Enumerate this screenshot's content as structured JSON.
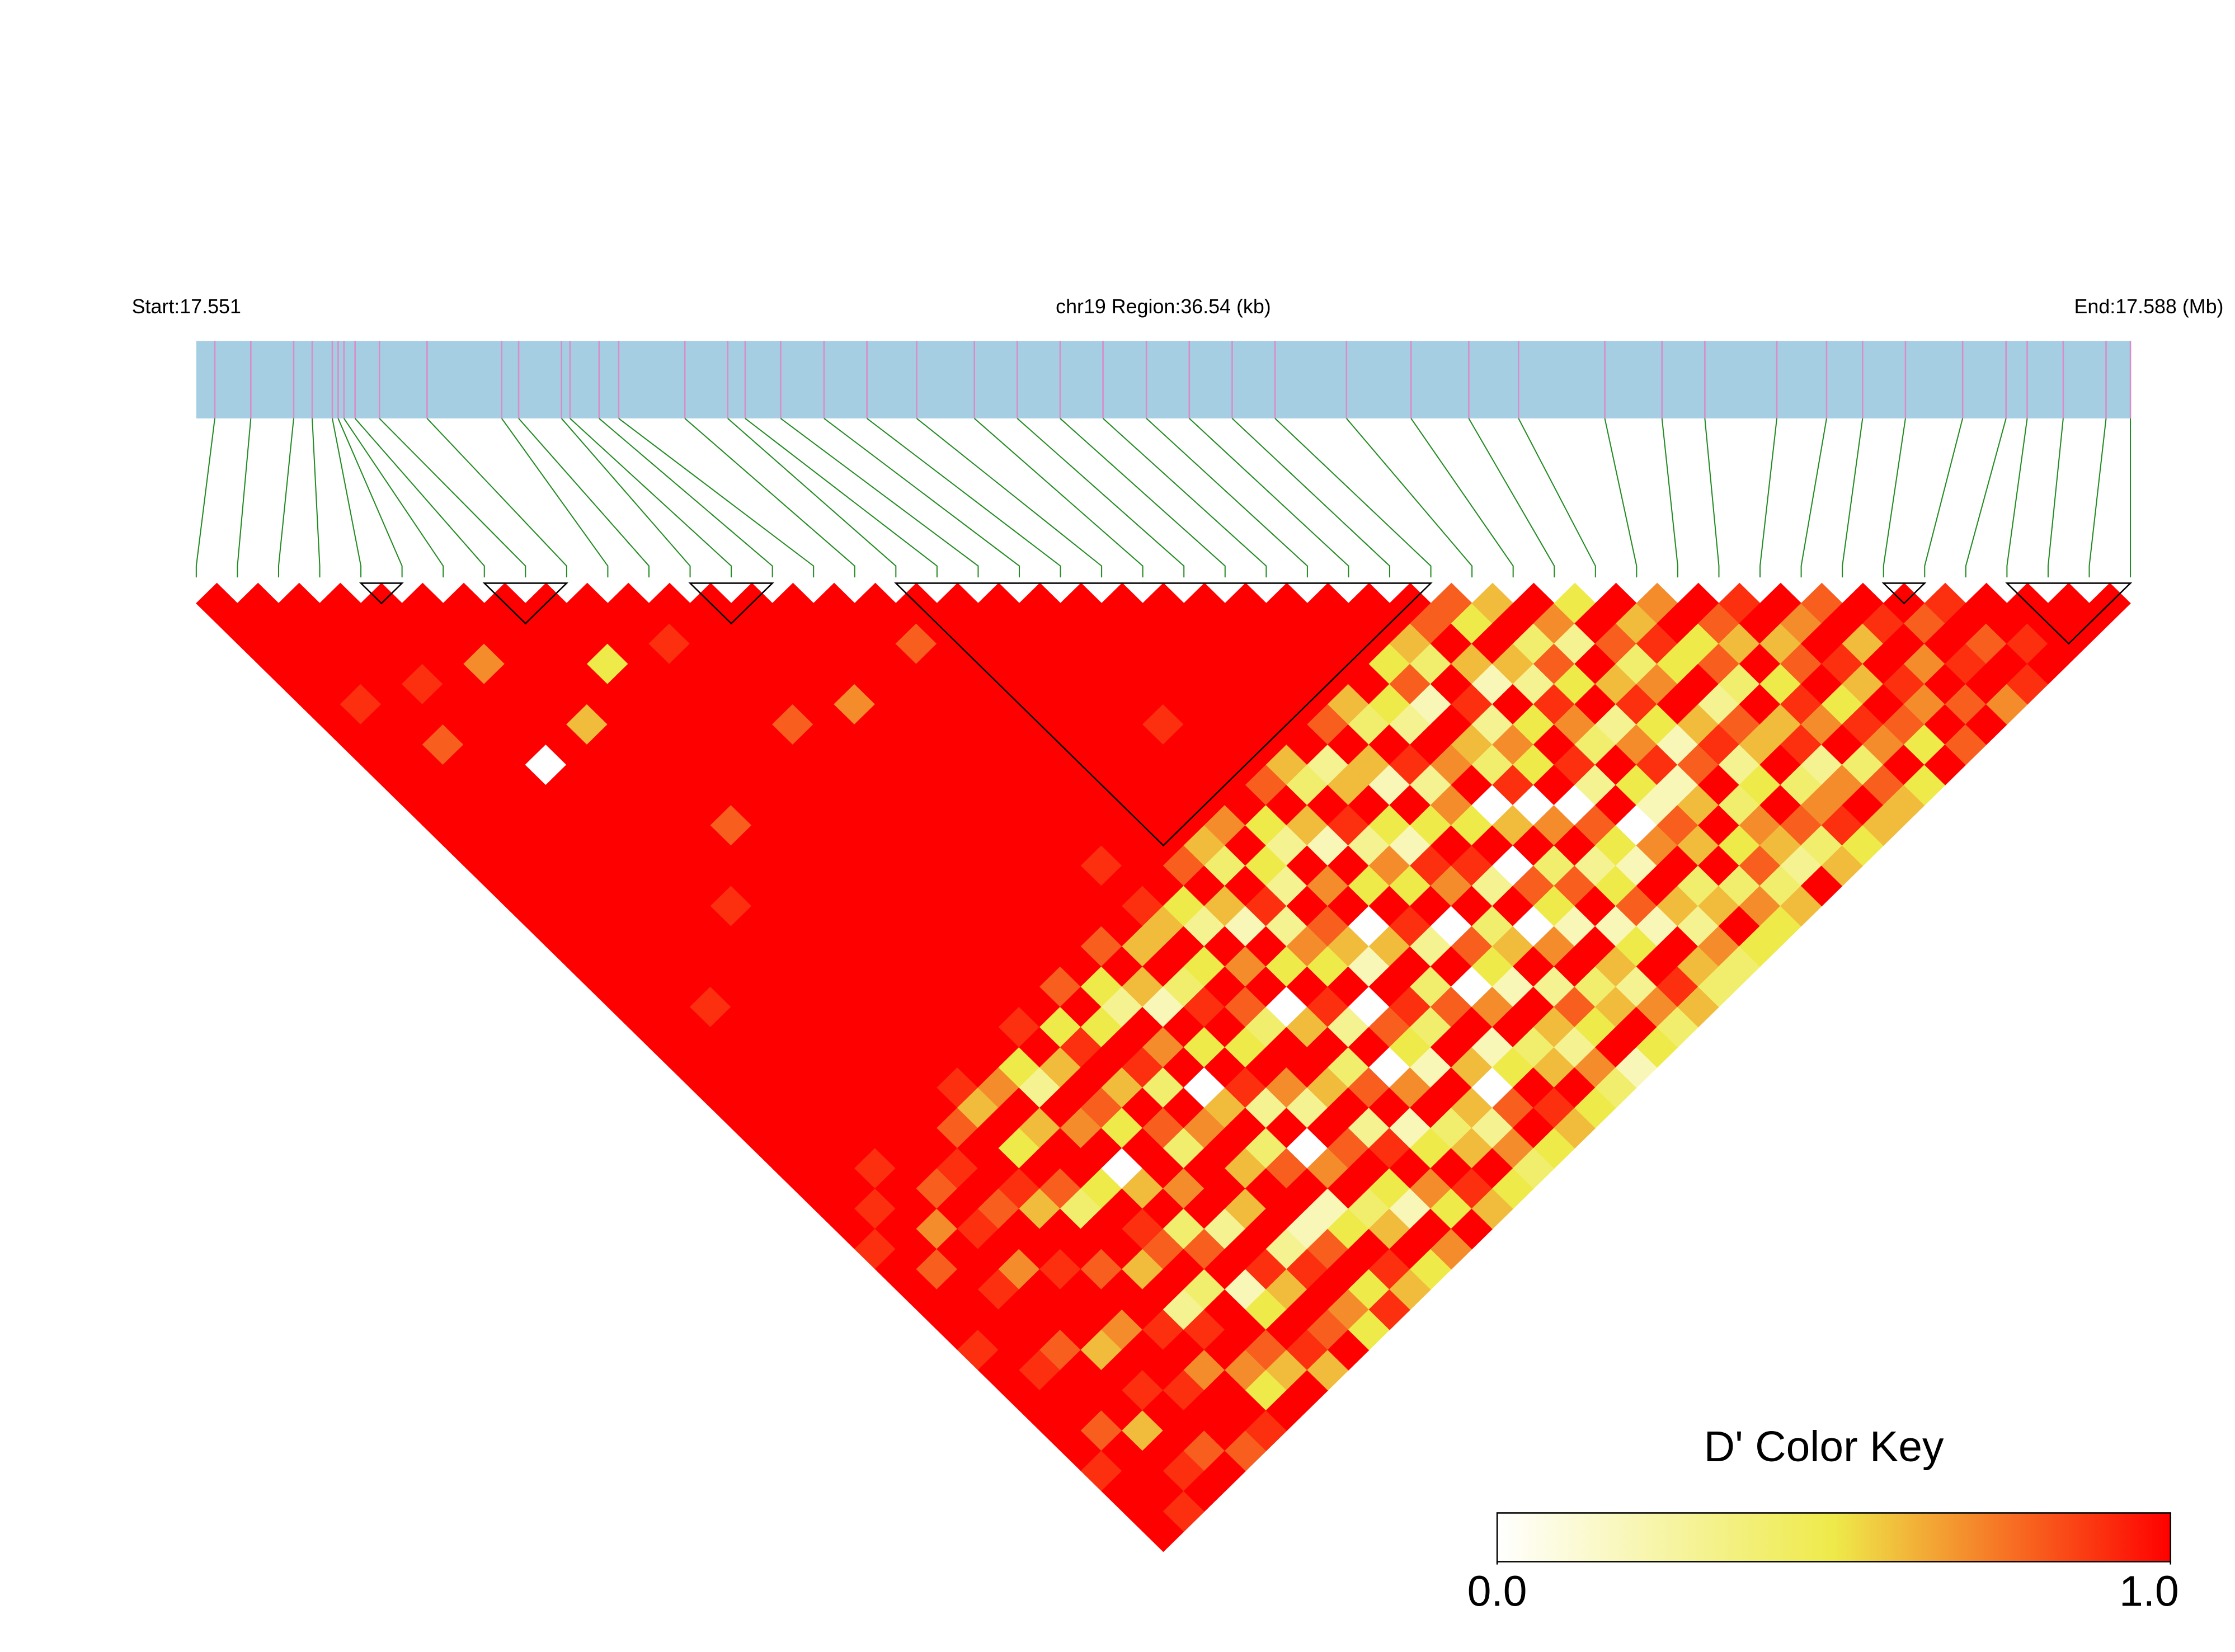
{
  "chart_data": {
    "type": "ld_heatmap",
    "start_label": "Start:17.551",
    "region_label": "chr19 Region:36.54 (kb)",
    "end_label": "End:17.588 (Mb)",
    "legend_title": "D' Color Key",
    "xlim": [
      17.551,
      17.58754
    ],
    "positions": [
      17.55135,
      17.55203,
      17.55284,
      17.55319,
      17.55357,
      17.55368,
      17.55379,
      17.554,
      17.55446,
      17.55536,
      17.55677,
      17.55709,
      17.5579,
      17.55806,
      17.55861,
      17.55898,
      17.56023,
      17.56104,
      17.56137,
      17.56204,
      17.56286,
      17.56367,
      17.56461,
      17.5657,
      17.56651,
      17.56732,
      17.56813,
      17.56895,
      17.56976,
      17.57057,
      17.57138,
      17.57273,
      17.57395,
      17.57504,
      17.57598,
      17.57761,
      17.57869,
      17.5795,
      17.58086,
      17.5818,
      17.58248,
      17.58329,
      17.58437,
      17.58519,
      17.58559,
      17.58627,
      17.58708,
      17.58754
    ],
    "bar_color": "#a6cee3",
    "marker_color": "#d98cc9",
    "link_color": "#228b22",
    "block_color": "#000000",
    "color_stops": [
      {
        "value": 0,
        "color": "#ffffff"
      },
      {
        "value": 0.5,
        "color": "#eeea4a"
      },
      {
        "value": 1,
        "color": "#ff0000"
      }
    ],
    "color_ticks": [
      {
        "value": 0,
        "label": "0.0"
      },
      {
        "value": 1,
        "label": "1.0"
      }
    ],
    "blocks": [
      [
        4,
        5
      ],
      [
        7,
        9
      ],
      [
        12,
        14
      ],
      [
        17,
        30
      ],
      [
        41,
        42
      ],
      [
        44,
        47
      ]
    ],
    "dprime": [
      [
        1,
        1,
        1,
        1,
        1,
        1,
        1,
        1,
        1,
        1,
        1,
        1,
        1,
        1,
        1,
        1,
        1,
        1,
        1,
        1,
        1,
        1,
        1,
        1,
        1,
        1,
        1,
        1,
        1,
        1,
        1,
        1,
        0.9,
        1,
        1,
        1,
        1,
        0.9,
        1,
        1,
        1,
        1,
        1,
        0.9,
        1,
        1,
        1
      ],
      [
        1,
        1,
        1,
        1,
        1,
        0.9,
        1,
        1,
        1,
        1,
        1,
        1,
        1,
        1,
        1,
        1,
        1,
        1,
        1,
        1,
        1,
        1,
        1,
        1,
        1,
        1,
        1,
        1,
        1,
        1,
        0.9,
        1,
        1,
        0.8,
        1,
        1,
        1,
        1,
        0.9,
        1,
        1,
        0.8,
        1,
        1,
        1,
        0.9
      ],
      [
        1,
        1,
        1,
        1,
        1,
        1,
        1,
        0.8,
        1,
        1,
        1,
        1,
        1,
        1,
        1,
        1,
        1,
        1,
        1,
        1,
        0.9,
        1,
        1,
        1,
        1,
        1,
        1,
        1,
        0.9,
        1,
        1,
        0.7,
        1,
        1,
        0.9,
        1,
        1,
        0.8,
        1,
        1,
        1,
        0.6,
        1,
        0.9,
        1
      ],
      [
        1,
        1,
        1,
        1,
        0.9,
        1,
        1,
        1,
        1,
        1,
        1,
        1,
        1,
        1,
        1,
        1,
        1,
        1,
        1,
        1,
        1,
        1,
        1,
        1,
        1,
        1,
        1,
        1,
        1,
        0.8,
        1,
        0.9,
        1,
        0.7,
        1,
        1,
        1,
        0.6,
        1,
        0.9,
        1,
        1,
        0.8,
        1
      ],
      [
        1,
        1,
        1,
        1,
        1,
        1,
        1,
        1,
        0,
        1,
        1,
        1,
        1,
        1,
        1,
        1,
        1,
        1,
        1,
        1,
        1,
        1,
        1,
        1,
        1,
        1,
        1,
        1,
        0.9,
        1,
        0.8,
        1,
        1,
        0.9,
        1,
        1,
        0.7,
        1,
        1,
        0.9,
        1,
        1,
        0.8
      ],
      [
        1,
        1,
        1,
        0.7,
        1,
        1,
        1,
        1,
        1,
        1,
        1,
        1,
        1,
        1,
        1,
        0.9,
        1,
        1,
        1,
        1,
        1,
        1,
        1,
        1,
        1,
        1,
        0.8,
        1,
        1,
        0.9,
        0.6,
        1,
        1,
        0.8,
        1,
        1,
        0.9,
        1,
        0.7,
        1,
        1,
        0.9
      ],
      [
        1,
        1,
        1,
        1,
        1,
        1,
        0.6,
        1,
        1,
        1,
        1,
        1,
        1,
        1,
        1,
        1,
        1,
        1,
        1,
        1,
        1,
        1,
        1,
        1,
        0.9,
        0.6,
        1,
        0.5,
        1,
        0.8,
        0.4,
        1,
        1,
        0.6,
        1,
        0.3,
        0.9,
        1,
        0.7,
        0.5,
        1
      ],
      [
        1,
        1,
        1,
        1,
        1,
        1,
        1,
        1,
        1,
        1,
        1,
        0.8,
        1,
        1,
        1,
        1,
        1,
        1,
        1,
        1,
        1,
        1,
        1,
        1,
        0.7,
        1,
        0.6,
        1,
        1,
        0.5,
        1,
        0.9,
        0.8,
        1,
        0.4,
        1,
        1,
        0.8,
        0.6,
        1
      ],
      [
        1,
        1,
        1,
        0.5,
        1,
        1,
        1,
        1,
        1,
        1,
        1,
        1,
        1,
        1,
        1,
        1,
        1,
        1,
        1,
        1,
        1,
        1,
        1,
        0.5,
        0.3,
        1,
        0.7,
        1,
        0,
        0.6,
        1,
        0.4,
        0.8,
        1,
        0.2,
        0.5,
        1,
        0.9,
        0.6
      ],
      [
        1,
        1,
        1,
        1,
        1,
        1,
        1,
        1,
        1,
        1,
        1,
        1,
        1,
        1,
        1,
        1,
        1,
        1,
        1,
        1,
        1,
        0.9,
        1,
        0.6,
        1,
        0.8,
        0.5,
        1,
        1,
        0.7,
        1,
        0.3,
        1,
        0.9,
        0.6,
        1,
        0.8,
        1
      ],
      [
        1,
        1,
        0.9,
        1,
        1,
        1,
        1,
        1,
        1,
        1,
        1,
        1,
        1,
        1,
        1,
        1,
        1,
        1,
        1,
        1,
        1,
        0.5,
        0.9,
        1,
        0.6,
        1,
        0.8,
        0.4,
        1,
        1,
        0.6,
        1,
        0.3,
        0.9,
        1,
        0.7,
        0.5
      ],
      [
        1,
        1,
        1,
        1,
        1,
        1,
        0.8,
        1,
        1,
        1,
        1,
        1,
        1,
        1,
        1,
        1,
        1,
        1,
        1,
        0.8,
        1,
        0.5,
        1,
        0.9,
        0.4,
        1,
        0.7,
        1,
        0.6,
        1,
        1,
        0.2,
        0.8,
        1,
        0.5,
        0.9
      ],
      [
        1,
        1,
        1,
        1,
        1,
        1,
        1,
        1,
        1,
        1,
        1,
        1,
        1,
        1,
        1,
        1,
        1,
        1,
        1,
        0.5,
        0.3,
        1,
        0.7,
        1,
        0,
        0.6,
        1,
        0.4,
        0.8,
        1,
        0.2,
        0.5,
        1,
        0.9,
        0.6
      ],
      [
        1,
        1,
        1,
        1,
        1,
        0.7,
        1,
        1,
        1,
        1,
        1,
        1,
        1,
        1,
        1,
        1,
        1,
        0.8,
        1,
        0.6,
        0.2,
        1,
        0.5,
        1,
        0.9,
        0.3,
        1,
        0,
        0.7,
        1,
        0.4,
        0.6,
        1,
        0.5
      ],
      [
        1,
        1,
        1,
        1,
        1,
        1,
        1,
        1,
        1,
        1,
        1,
        1,
        1,
        1,
        1,
        1,
        1,
        0.6,
        1,
        0.4,
        0.9,
        1,
        0.5,
        1,
        0.7,
        0.3,
        1,
        0.8,
        1,
        0.5,
        0.2,
        1,
        0.7
      ],
      [
        1,
        1,
        1,
        1,
        1,
        1,
        1,
        1,
        1,
        1,
        1,
        1,
        1,
        0.9,
        1,
        0.9,
        0.6,
        1,
        0.5,
        1,
        0.8,
        0.4,
        1,
        1,
        0.6,
        1,
        0.3,
        0.9,
        1,
        0.7,
        0.5,
        1
      ],
      [
        1,
        1,
        0.8,
        1,
        1,
        1,
        1,
        1,
        1,
        1,
        1,
        1,
        1,
        1,
        1,
        0.5,
        0.3,
        1,
        0.7,
        1,
        0,
        0.6,
        1,
        0.4,
        0.8,
        1,
        0.2,
        0.5,
        1,
        0.9,
        0.6
      ],
      [
        1,
        1,
        1,
        1,
        1,
        1,
        1,
        1,
        1,
        1,
        1,
        1,
        1,
        0.8,
        1,
        0.6,
        0.2,
        1,
        0.5,
        1,
        0.9,
        0.3,
        1,
        0,
        0.7,
        1,
        0.4,
        0.6,
        1,
        0.5
      ],
      [
        1,
        1,
        1,
        1,
        1,
        1,
        1,
        1,
        1,
        1,
        1,
        1,
        0.6,
        0.4,
        1,
        0.9,
        0.3,
        0.7,
        0.5,
        1,
        0,
        0.8,
        0.5,
        0.2,
        1,
        0.6,
        0.3,
        0.7,
        0.4
      ],
      [
        1,
        1,
        1,
        1,
        1,
        1,
        1,
        1,
        1,
        1,
        1,
        0.7,
        1,
        0.5,
        0.3,
        1,
        0.8,
        0.6,
        0.2,
        1,
        0.9,
        0.4,
        1,
        0.6,
        0,
        0.8,
        1,
        0.5
      ],
      [
        1,
        1,
        1,
        1,
        1,
        1,
        0.9,
        1,
        1,
        1,
        1,
        0.5,
        0.3,
        1,
        0.7,
        1,
        0,
        0.6,
        1,
        0.4,
        0.8,
        1,
        0.2,
        0.5,
        1,
        0.9,
        0.6
      ],
      [
        1,
        1,
        1,
        1,
        1,
        1,
        1,
        1,
        1,
        0.8,
        1,
        0.6,
        0.2,
        1,
        0.5,
        1,
        0.9,
        0.3,
        1,
        0,
        0.7,
        1,
        0.4,
        0.6,
        1,
        0.5
      ],
      [
        1,
        1,
        1,
        1,
        1,
        1,
        1,
        1,
        0.6,
        0.4,
        1,
        0.9,
        0.3,
        0.7,
        0.5,
        1,
        0,
        0.8,
        0.5,
        0.2,
        1,
        0.6,
        0.3,
        0.7,
        0.4
      ],
      [
        1,
        1,
        1,
        1,
        1,
        1,
        1,
        1,
        0.3,
        0.6,
        1,
        0.5,
        0.2,
        0.9,
        0.7,
        1,
        0.4,
        0.6,
        1,
        0.3,
        0.8,
        0.5,
        1,
        0.2
      ],
      [
        1,
        1,
        1,
        1,
        1,
        1,
        0.8,
        1,
        0.6,
        0.2,
        1,
        0.5,
        1,
        0.9,
        0.3,
        1,
        0,
        0.7,
        1,
        0.4,
        0.6,
        1,
        0.5
      ],
      [
        1,
        1,
        1,
        1,
        1,
        0.6,
        0.4,
        1,
        0.9,
        0.3,
        0.7,
        0.5,
        1,
        0,
        0.8,
        0.5,
        0.2,
        1,
        0.6,
        0.3,
        0.7,
        0.4
      ],
      [
        1,
        1,
        1,
        1,
        1,
        0.5,
        0.3,
        1,
        0.7,
        1,
        0,
        0.6,
        1,
        0.4,
        0.8,
        1,
        0.2,
        0.5,
        1,
        0.9,
        0.6
      ],
      [
        1,
        1,
        1,
        0.5,
        0.8,
        0.2,
        1,
        0.6,
        0.4,
        0.9,
        0,
        0.7,
        1,
        0.3,
        0.5,
        0.8,
        0.2,
        1,
        0.6,
        0.4
      ],
      [
        1,
        1,
        0.6,
        0.4,
        1,
        0.9,
        0.3,
        0.7,
        0.5,
        1,
        0,
        0.8,
        0.5,
        0.2,
        1,
        0.6,
        0.3,
        0.7,
        0.4
      ],
      [
        1,
        0.8,
        1,
        0.6,
        0.2,
        1,
        0.5,
        1,
        0.9,
        0.3,
        1,
        0,
        0.7,
        1,
        0.4,
        0.6,
        1,
        0.5
      ],
      [
        0.8,
        0.5,
        1,
        0.6,
        0.3,
        0.9,
        0.7,
        0.4,
        1,
        0.5,
        0.2,
        0.8,
        0.6,
        1,
        0.4,
        0.7,
        0.5
      ],
      [
        0.6,
        1,
        0.4,
        0.8,
        0.5,
        1,
        0.3,
        0.7,
        0.9,
        0.2,
        0.6,
        1,
        0.5,
        0.8,
        0.4,
        0.6
      ],
      [
        1,
        0.7,
        0.3,
        1,
        0.6,
        0.9,
        0.5,
        0.2,
        0.8,
        1,
        0.4,
        0.7,
        0.6,
        0.3,
        1
      ],
      [
        0.5,
        1,
        0.8,
        0.4,
        0.7,
        1,
        0.6,
        0.9,
        0.3,
        0.5,
        1,
        0.8,
        0.4,
        0.6
      ],
      [
        1,
        0.6,
        0.9,
        0.5,
        1,
        0.3,
        0.8,
        0.6,
        1,
        0.4,
        0.7,
        0.9,
        0.5
      ],
      [
        0.7,
        1,
        0.5,
        0.8,
        0.4,
        1,
        0.6,
        0.9,
        0.3,
        0.7,
        1,
        0.6
      ],
      [
        1,
        0.8,
        0.6,
        1,
        0.5,
        0.9,
        0.7,
        1,
        0.4,
        0.8,
        0.6
      ],
      [
        0.9,
        1,
        0.6,
        0.8,
        1,
        0.5,
        0.9,
        0.7,
        1,
        0.5
      ],
      [
        1,
        0.7,
        1,
        0.9,
        0.6,
        1,
        0.8,
        0.5,
        1
      ],
      [
        0.8,
        1,
        0.6,
        1,
        0.9,
        0.7,
        1,
        0.8
      ],
      [
        1,
        0.9,
        1,
        0.7,
        1,
        0.8,
        1
      ],
      [
        1,
        0.8,
        1,
        0.9,
        1,
        0.7
      ],
      [
        0.9,
        1,
        0.8,
        1,
        0.9
      ],
      [
        1,
        1,
        0.9,
        1
      ],
      [
        1,
        1,
        1
      ],
      [
        1,
        1
      ],
      [
        1
      ]
    ]
  }
}
